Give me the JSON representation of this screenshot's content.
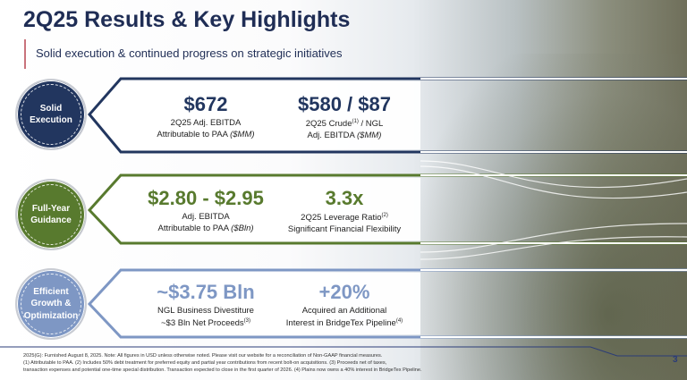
{
  "header": {
    "title": "2Q25 Results & Key Highlights",
    "subtitle": "Solid execution & continued progress on strategic initiatives"
  },
  "colors": {
    "navy": "#22365f",
    "green": "#587a2e",
    "blue": "#7e97c4",
    "accent": "#c9737c"
  },
  "rows": [
    {
      "label": "Solid\nExecution",
      "items": [
        {
          "value": "$672",
          "line1": "2Q25 Adj. EBITDA",
          "line2": "Attributable to PAA",
          "unit": "($MM)"
        },
        {
          "value": "$580 / $87",
          "line1a": "2Q25 Crude",
          "sup": "(1)",
          "line1b": " / NGL",
          "line2": "Adj. EBITDA",
          "unit": "($MM)"
        }
      ]
    },
    {
      "label": "Full-Year\nGuidance",
      "items": [
        {
          "value": "$2.80 - $2.95",
          "line1": "Adj. EBITDA",
          "line2": "Attributable to PAA",
          "unit": "($Bln)"
        },
        {
          "value": "3.3x",
          "line1a": "2Q25 Leverage Ratio",
          "sup": "(2)",
          "line2": "Significant Financial Flexibility"
        }
      ]
    },
    {
      "label": "Efficient\nGrowth &\nOptimization",
      "items": [
        {
          "value": "~$3.75 Bln",
          "line1": "NGL Business Divestiture",
          "line2": "~$3 Bln Net Proceeds",
          "sup": "(3)"
        },
        {
          "value": "+20%",
          "line1": "Acquired an Additional",
          "line2": "Interest in BridgeTex Pipeline",
          "sup": "(4)"
        }
      ]
    }
  ],
  "footer": {
    "l1": "2025(G): Furnished August 8, 2025. Note: All figures in USD unless otherwise noted. Please visit our website for a reconciliation of Non-GAAP financial measures.",
    "l2": "(1) Attributable to PAA. (2) Includes 50% debt treatment for preferred equity and partial year contributions from recent bolt-on acquisitions. (3) Proceeds net of taxes,",
    "l3": "transaction expenses and potential one-time special distribution. Transaction expected to close in the first quarter of 2026. (4) Plains now owns a 40% interest in BridgeTex Pipeline."
  },
  "page_number": "3"
}
